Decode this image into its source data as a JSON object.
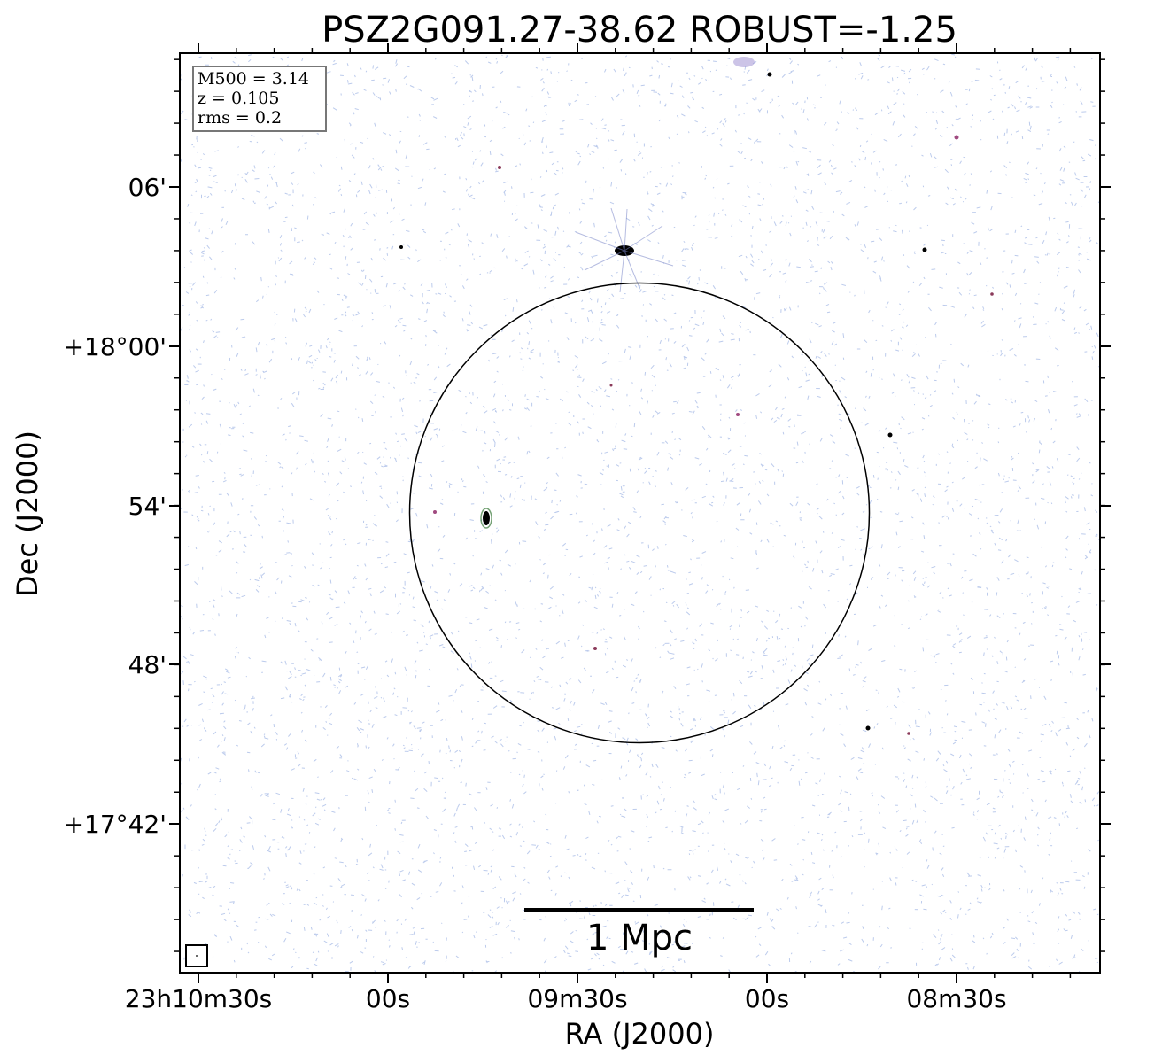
{
  "title": "PSZ2G091.27-38.62 ROBUST=-1.25",
  "xlabel": "RA (J2000)",
  "ylabel": "Dec (J2000)",
  "x_ticks": [
    "23h10m30s",
    "00s",
    "09m30s",
    "00s",
    "08m30s"
  ],
  "y_ticks": [
    "06'",
    "+18°00'",
    "54'",
    "48'",
    "+17°42'"
  ],
  "info_box": [
    "M500 = 3.14",
    "z = 0.105",
    "rms = 0.2"
  ],
  "scalebar_label": "1 Mpc",
  "colors": {
    "noise": "#8fa8e0",
    "source": "#000000",
    "accent": "#8b3a8b"
  }
}
